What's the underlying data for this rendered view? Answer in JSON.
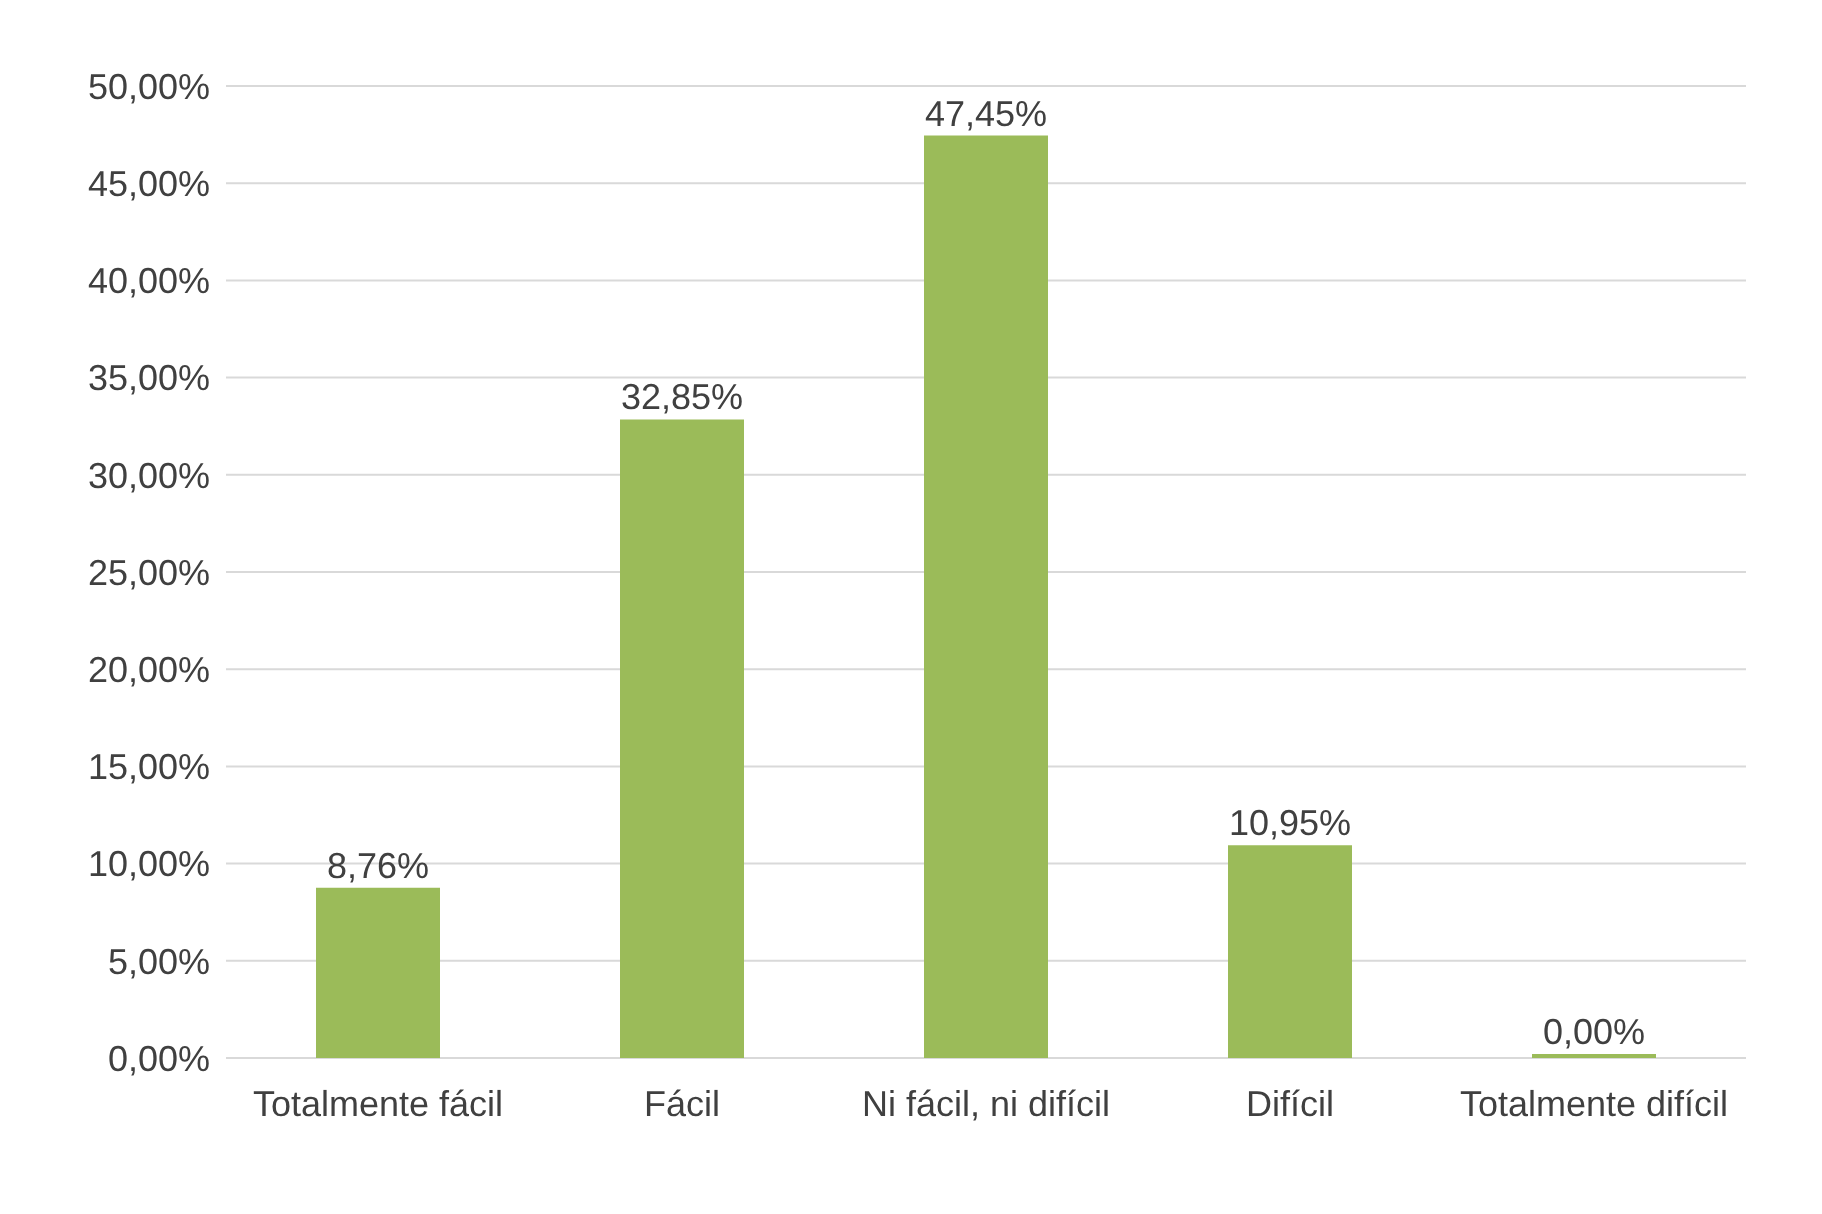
{
  "chart_data": {
    "type": "bar",
    "categories": [
      "Totalmente fácil",
      "Fácil",
      "Ni fácil, ni difícil",
      "Difícil",
      "Totalmente difícil"
    ],
    "values": [
      8.76,
      32.85,
      47.45,
      10.95,
      0.0
    ],
    "value_labels": [
      "8,76%",
      "32,85%",
      "47,45%",
      "10,95%",
      "0,00%"
    ],
    "color": "#9bbb59",
    "ylim": [
      0,
      50
    ],
    "yticks": [
      {
        "value": 0,
        "label": "0,00%"
      },
      {
        "value": 5,
        "label": "5,00%"
      },
      {
        "value": 10,
        "label": "10,00%"
      },
      {
        "value": 15,
        "label": "15,00%"
      },
      {
        "value": 20,
        "label": "20,00%"
      },
      {
        "value": 25,
        "label": "25,00%"
      },
      {
        "value": 30,
        "label": "30,00%"
      },
      {
        "value": 35,
        "label": "35,00%"
      },
      {
        "value": 40,
        "label": "40,00%"
      },
      {
        "value": 45,
        "label": "45,00%"
      },
      {
        "value": 50,
        "label": "50,00%"
      }
    ],
    "grid": "y"
  }
}
